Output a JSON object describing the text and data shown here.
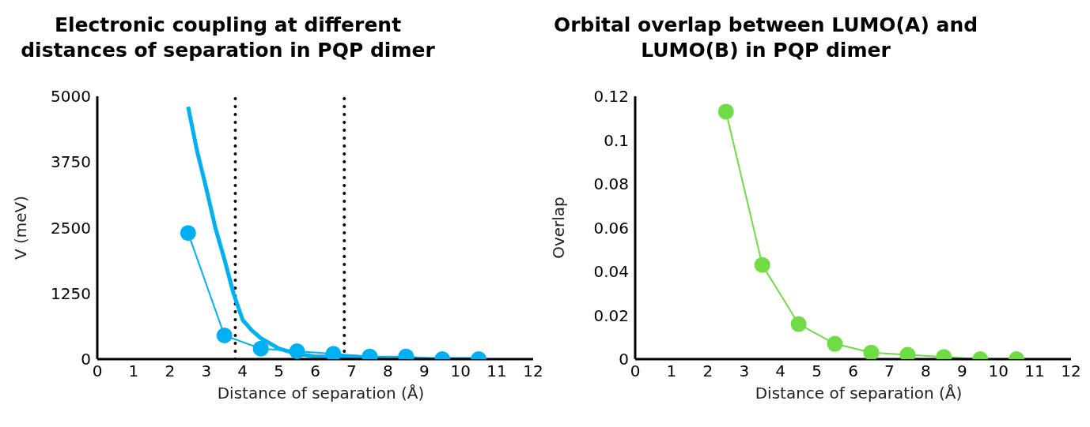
{
  "chart_data": [
    {
      "type": "line",
      "title": "Electronic coupling at different distances of separation in PQP dimer",
      "xlabel": "Distance of separation (Å)",
      "ylabel": "V (meV)",
      "xlim": [
        0,
        12
      ],
      "xticks": [
        0,
        1,
        2,
        3,
        4,
        5,
        6,
        7,
        8,
        9,
        10,
        11,
        12
      ],
      "ylim": [
        0,
        5000
      ],
      "yticks": [
        0,
        1250,
        2500,
        3750,
        5000
      ],
      "grid": false,
      "series": [
        {
          "color": "#00b0f0",
          "marker": "none",
          "x": [
            2.5,
            2.75,
            3,
            3.25,
            3.5,
            3.75,
            4,
            4.25,
            4.5,
            5,
            5.5,
            6,
            7,
            8,
            9,
            10.5
          ],
          "values": [
            4800,
            3950,
            3250,
            2500,
            1900,
            1250,
            750,
            550,
            400,
            200,
            100,
            50,
            50,
            0,
            0,
            0
          ]
        },
        {
          "color": "#00b0f0",
          "marker": "circle",
          "x": [
            2.5,
            3.5,
            4.5,
            5.5,
            6.5,
            7.5,
            8.5,
            9.5,
            10.5
          ],
          "values": [
            2400,
            450,
            200,
            150,
            100,
            50,
            50,
            0,
            0
          ]
        }
      ],
      "ref_lines": [
        {
          "axis": "x",
          "value": 3.8,
          "line_style": "dotted",
          "color": "#000000"
        },
        {
          "axis": "x",
          "value": 6.8,
          "line_style": "dotted",
          "color": "#000000"
        }
      ]
    },
    {
      "type": "line",
      "title": "Orbital overlap between LUMO(A) and LUMO(B) in PQP dimer",
      "xlabel": "Distance of separation (Å)",
      "ylabel": "Overlap",
      "xlim": [
        0,
        12
      ],
      "xticks": [
        0,
        1,
        2,
        3,
        4,
        5,
        6,
        7,
        8,
        9,
        10,
        11,
        12
      ],
      "ylim": [
        0,
        0.12
      ],
      "yticks": [
        0,
        0.02,
        0.04,
        0.06,
        0.08,
        0.1,
        0.12
      ],
      "grid": false,
      "series": [
        {
          "color": "#6fdc46",
          "marker": "circle",
          "x": [
            2.5,
            3.5,
            4.5,
            5.5,
            6.5,
            7.5,
            8.5,
            9.5,
            10.5
          ],
          "values": [
            0.113,
            0.043,
            0.016,
            0.007,
            0.003,
            0.002,
            0.001,
            0,
            0
          ]
        }
      ]
    }
  ]
}
